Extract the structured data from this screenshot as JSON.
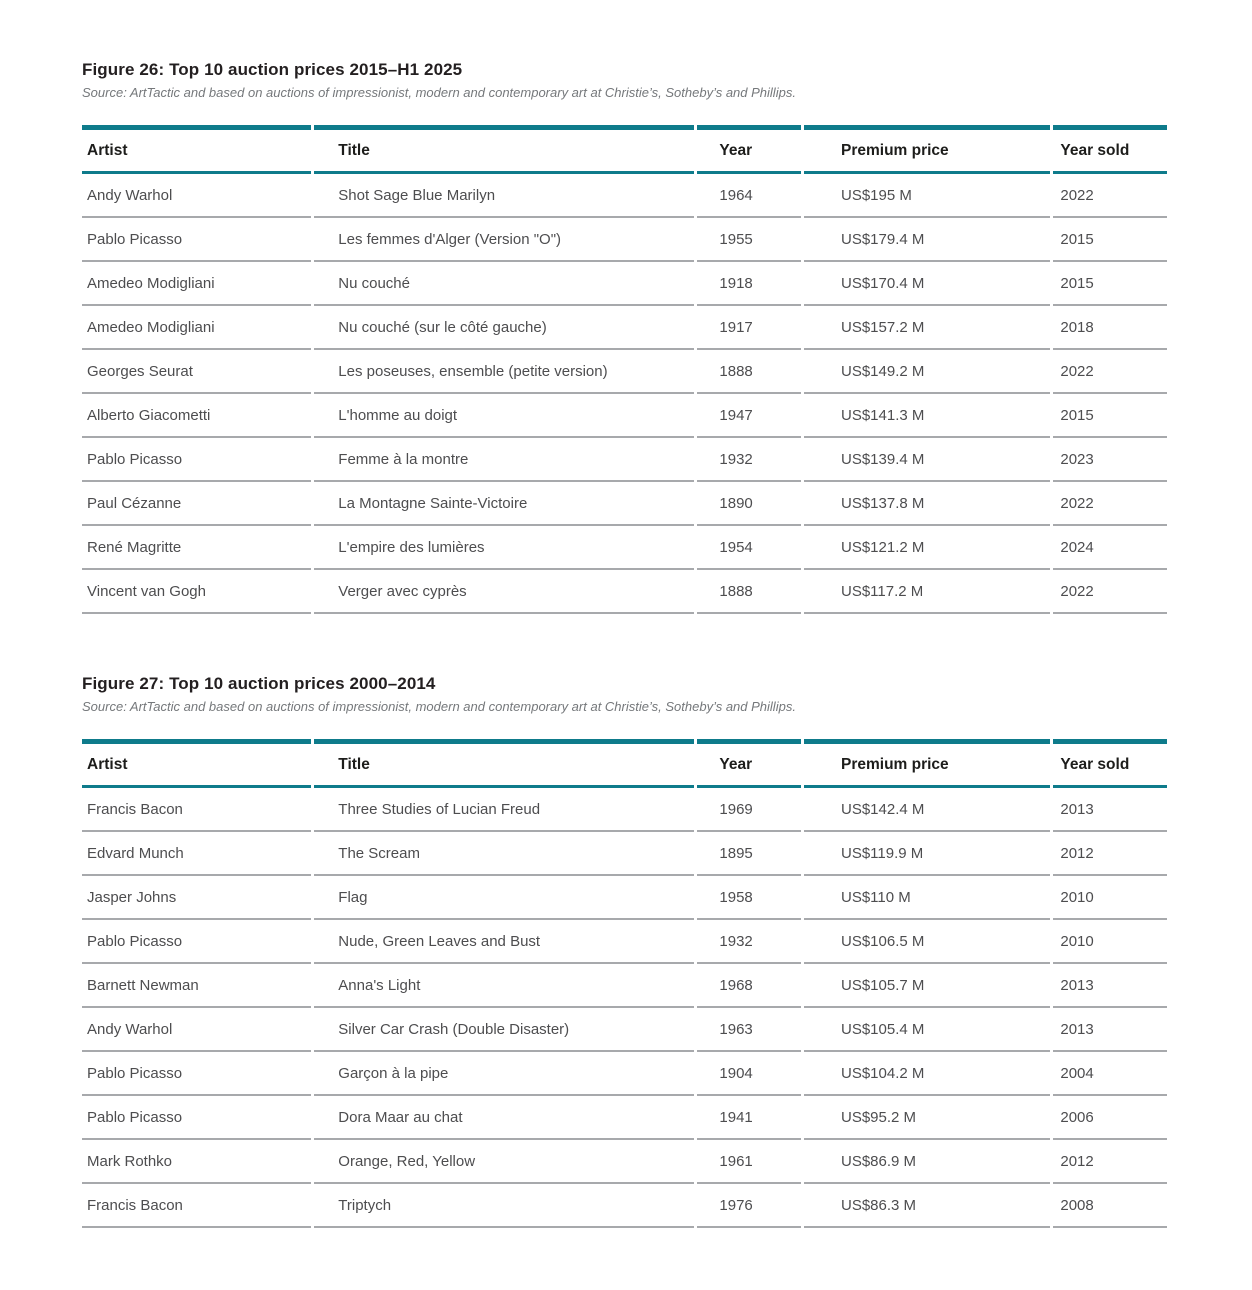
{
  "colors": {
    "accent_teal": "#0e7b8b",
    "row_divider_gray": "#a7a9ac",
    "body_text": "#4d4d4f",
    "header_text": "#1d1d1b",
    "source_text": "#75787b"
  },
  "figures": [
    {
      "title": "Figure 26: Top 10 auction prices 2015–H1 2025",
      "source": "Source: ArtTactic and based on auctions of impressionist, modern and contemporary art at Christie’s, Sotheby’s and Phillips.",
      "columns": [
        "Artist",
        "Title",
        "Year",
        "Premium price",
        "Year sold"
      ],
      "rows": [
        [
          "Andy Warhol",
          "Shot Sage Blue Marilyn",
          "1964",
          "US$195 M",
          "2022"
        ],
        [
          "Pablo Picasso",
          "Les femmes d'Alger (Version \"O\")",
          "1955",
          "US$179.4 M",
          "2015"
        ],
        [
          "Amedeo Modigliani",
          "Nu couché",
          "1918",
          "US$170.4 M",
          "2015"
        ],
        [
          "Amedeo Modigliani",
          "Nu couché (sur le côté gauche)",
          "1917",
          "US$157.2 M",
          "2018"
        ],
        [
          "Georges Seurat",
          "Les poseuses, ensemble (petite version)",
          "1888",
          "US$149.2 M",
          "2022"
        ],
        [
          "Alberto Giacometti",
          "L'homme au doigt",
          "1947",
          "US$141.3 M",
          "2015"
        ],
        [
          "Pablo Picasso",
          "Femme à la montre",
          "1932",
          "US$139.4 M",
          "2023"
        ],
        [
          "Paul Cézanne",
          "La Montagne Sainte-Victoire",
          "1890",
          "US$137.8 M",
          "2022"
        ],
        [
          "René Magritte",
          "L'empire des lumières",
          "1954",
          "US$121.2 M",
          "2024"
        ],
        [
          "Vincent van Gogh",
          "Verger avec cyprès",
          "1888",
          "US$117.2 M",
          "2022"
        ]
      ]
    },
    {
      "title": "Figure 27: Top 10 auction prices 2000–2014",
      "source": "Source: ArtTactic and based on auctions of impressionist, modern and contemporary art at Christie’s, Sotheby’s and Phillips.",
      "columns": [
        "Artist",
        "Title",
        "Year",
        "Premium price",
        "Year sold"
      ],
      "rows": [
        [
          "Francis Bacon",
          "Three Studies of Lucian Freud",
          "1969",
          "US$142.4 M",
          "2013"
        ],
        [
          "Edvard Munch",
          "The Scream",
          "1895",
          "US$119.9 M",
          "2012"
        ],
        [
          "Jasper Johns",
          "Flag",
          "1958",
          "US$110 M",
          "2010"
        ],
        [
          "Pablo Picasso",
          "Nude, Green Leaves and Bust",
          "1932",
          "US$106.5 M",
          "2010"
        ],
        [
          "Barnett Newman",
          "Anna's Light",
          "1968",
          "US$105.7 M",
          "2013"
        ],
        [
          "Andy Warhol",
          "Silver Car Crash (Double Disaster)",
          "1963",
          "US$105.4 M",
          "2013"
        ],
        [
          "Pablo Picasso",
          "Garçon à la pipe",
          "1904",
          "US$104.2 M",
          "2004"
        ],
        [
          "Pablo Picasso",
          "Dora Maar au chat",
          "1941",
          "US$95.2 M",
          "2006"
        ],
        [
          "Mark Rothko",
          "Orange, Red, Yellow",
          "1961",
          "US$86.9 M",
          "2012"
        ],
        [
          "Francis Bacon",
          "Triptych",
          "1976",
          "US$86.3 M",
          "2008"
        ]
      ]
    }
  ]
}
